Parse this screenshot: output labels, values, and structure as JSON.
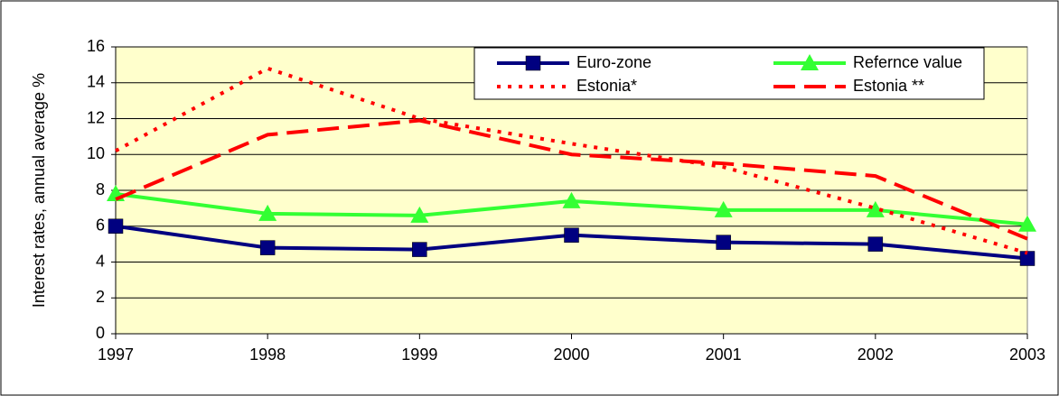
{
  "chart_data": {
    "type": "line",
    "y_label": "Interest rates, annual average %",
    "categories": [
      "1997",
      "1998",
      "1999",
      "2000",
      "2001",
      "2002",
      "2003"
    ],
    "series": [
      {
        "name": "Euro-zone",
        "color": "#000080",
        "dash": "solid",
        "marker": "square",
        "values": [
          6.0,
          4.8,
          4.7,
          5.5,
          5.1,
          5.0,
          4.2
        ]
      },
      {
        "name": "Refernce value",
        "color": "#33ff33",
        "dash": "solid",
        "marker": "triangle",
        "values": [
          7.8,
          6.7,
          6.6,
          7.4,
          6.9,
          6.9,
          6.1
        ]
      },
      {
        "name": "Estonia*",
        "color": "#ff0000",
        "dash": "dotted",
        "marker": "none",
        "values": [
          10.2,
          14.8,
          12.0,
          10.6,
          9.3,
          7.0,
          4.5
        ]
      },
      {
        "name": "Estonia **",
        "color": "#ff0000",
        "dash": "dashed",
        "marker": "none",
        "values": [
          7.5,
          11.1,
          11.9,
          10.0,
          9.5,
          8.8,
          5.3
        ]
      }
    ],
    "ylim": [
      0,
      16
    ],
    "yticks": [
      0,
      2,
      4,
      6,
      8,
      10,
      12,
      14,
      16
    ],
    "grid": true
  }
}
